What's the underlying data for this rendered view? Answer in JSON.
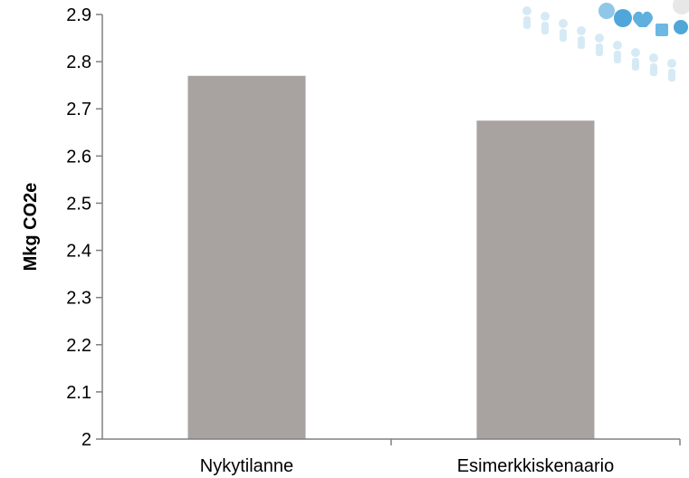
{
  "chart_data": {
    "type": "bar",
    "categories": [
      "Nykytilanne",
      "Esimerkkiskenaario"
    ],
    "values": [
      2.77,
      2.675
    ],
    "title": "",
    "xlabel": "",
    "ylabel": "Mkg CO2e",
    "ylim": [
      2,
      2.9
    ],
    "yticks": [
      "2",
      "2.1",
      "2.2",
      "2.3",
      "2.4",
      "2.5",
      "2.6",
      "2.7",
      "2.8",
      "2.9"
    ],
    "grid": false,
    "legend": "none",
    "bar_color": "#a8a3a0",
    "axis_color": "#808080"
  },
  "decoration": {
    "colors": [
      "#b9dcef",
      "#4fa6d8",
      "#8fc7e8",
      "#d9ecf6"
    ],
    "icons": [
      "watermark-logo-icon",
      "heart-icon",
      "people-icon"
    ]
  }
}
